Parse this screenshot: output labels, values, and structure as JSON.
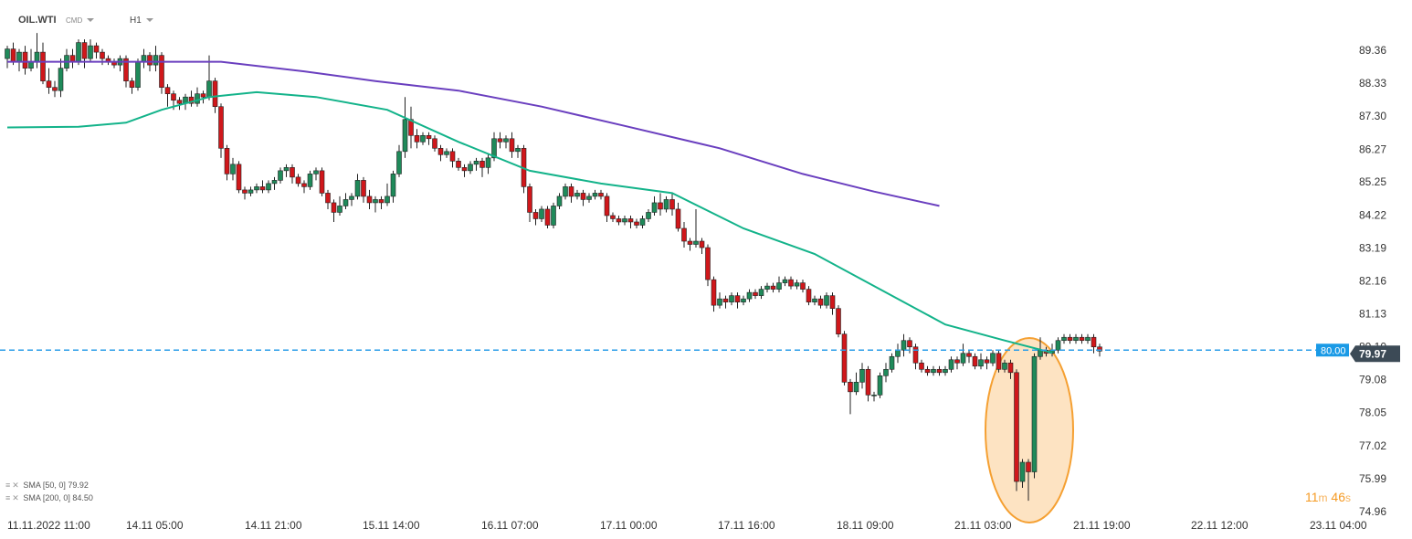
{
  "header": {
    "symbol": "OIL.WTI",
    "type": "CMD",
    "timeframe": "H1"
  },
  "legend": [
    {
      "label": "SMA  [50,  0]",
      "value": "79.92",
      "color": "#13b38a"
    },
    {
      "label": "SMA  [200,  0]",
      "value": "84.50",
      "color": "#6a3fbf"
    }
  ],
  "timer": {
    "minutes": "11",
    "m_unit": "m",
    "seconds": "46",
    "s_unit": "s"
  },
  "price_tags": {
    "line_label": "80.00",
    "last_label": "79.97"
  },
  "colors": {
    "up": "#1f8a5a",
    "down": "#d0171b",
    "sma50": "#13b38a",
    "sma200": "#6a3fbf",
    "price_line": "#2a9de8",
    "last_tag": "#3c4a56",
    "highlight_fill": "#fde3c2",
    "highlight_stroke": "#f5a032"
  },
  "chart_data": {
    "type": "candlestick",
    "y_ticks": [
      "89.36",
      "88.33",
      "87.30",
      "86.27",
      "85.25",
      "84.22",
      "83.19",
      "82.16",
      "81.13",
      "80.10",
      "79.08",
      "78.05",
      "77.02",
      "75.99",
      "74.96"
    ],
    "x_ticks": [
      "11.11.2022  11:00",
      "14.11  05:00",
      "14.11  21:00",
      "15.11  14:00",
      "16.11  07:00",
      "17.11  00:00",
      "17.11  16:00",
      "18.11  09:00",
      "21.11  03:00",
      "21.11  19:00",
      "22.11  12:00",
      "23.11  04:00"
    ],
    "ylim": [
      74.96,
      89.36
    ],
    "x_range_bars": [
      0,
      194
    ],
    "candles": [
      [
        89.1,
        89.4,
        88.8,
        89.5
      ],
      [
        89.4,
        89.0,
        88.9,
        89.6
      ],
      [
        89.0,
        89.3,
        88.7,
        89.4
      ],
      [
        89.3,
        88.8,
        88.6,
        89.5
      ],
      [
        88.8,
        89.0,
        88.7,
        89.4
      ],
      [
        89.0,
        89.3,
        88.8,
        89.9
      ],
      [
        89.3,
        88.4,
        88.3,
        89.6
      ],
      [
        88.4,
        88.2,
        88.0,
        88.8
      ],
      [
        88.2,
        88.1,
        87.9,
        88.4
      ],
      [
        88.1,
        88.8,
        87.9,
        89.1
      ],
      [
        88.8,
        89.2,
        88.7,
        89.4
      ],
      [
        89.2,
        89.0,
        88.8,
        89.4
      ],
      [
        89.0,
        89.6,
        88.9,
        89.7
      ],
      [
        89.6,
        89.1,
        88.8,
        89.7
      ],
      [
        89.1,
        89.5,
        89.0,
        89.7
      ],
      [
        89.5,
        89.3,
        89.1,
        89.6
      ],
      [
        89.3,
        89.1,
        88.9,
        89.4
      ],
      [
        89.1,
        89.0,
        88.9,
        89.2
      ],
      [
        89.0,
        88.9,
        88.8,
        89.1
      ],
      [
        88.9,
        89.1,
        88.7,
        89.2
      ],
      [
        89.1,
        88.4,
        88.2,
        89.2
      ],
      [
        88.4,
        88.2,
        88.0,
        88.5
      ],
      [
        88.2,
        89.0,
        88.1,
        89.1
      ],
      [
        89.0,
        89.2,
        88.8,
        89.4
      ],
      [
        89.2,
        88.9,
        88.7,
        89.3
      ],
      [
        88.9,
        89.2,
        88.7,
        89.5
      ],
      [
        89.2,
        88.2,
        88.0,
        89.3
      ],
      [
        88.2,
        88.0,
        87.6,
        88.3
      ],
      [
        88.0,
        87.8,
        87.5,
        88.1
      ],
      [
        87.8,
        87.7,
        87.5,
        87.9
      ],
      [
        87.7,
        87.9,
        87.5,
        88.0
      ],
      [
        87.9,
        87.7,
        87.6,
        88.1
      ],
      [
        87.7,
        88.0,
        87.6,
        88.2
      ],
      [
        88.0,
        87.9,
        87.7,
        88.1
      ],
      [
        87.9,
        88.4,
        87.8,
        89.2
      ],
      [
        88.4,
        87.6,
        87.4,
        88.5
      ],
      [
        87.6,
        86.3,
        86.0,
        87.7
      ],
      [
        86.3,
        85.5,
        85.3,
        86.4
      ],
      [
        85.5,
        85.8,
        85.3,
        86.0
      ],
      [
        85.8,
        85.0,
        84.9,
        85.9
      ],
      [
        85.0,
        84.9,
        84.7,
        85.1
      ],
      [
        84.9,
        85.0,
        84.8,
        85.1
      ],
      [
        85.0,
        85.1,
        84.9,
        85.2
      ],
      [
        85.1,
        85.0,
        84.9,
        85.3
      ],
      [
        85.0,
        85.2,
        84.9,
        85.3
      ],
      [
        85.2,
        85.3,
        85.0,
        85.4
      ],
      [
        85.3,
        85.6,
        85.2,
        85.7
      ],
      [
        85.6,
        85.7,
        85.4,
        85.8
      ],
      [
        85.7,
        85.4,
        85.2,
        85.8
      ],
      [
        85.4,
        85.2,
        85.1,
        85.5
      ],
      [
        85.2,
        85.1,
        84.9,
        85.3
      ],
      [
        85.1,
        85.5,
        85.0,
        85.6
      ],
      [
        85.5,
        85.6,
        85.3,
        85.7
      ],
      [
        85.6,
        84.9,
        84.8,
        85.7
      ],
      [
        84.9,
        84.6,
        84.4,
        85.0
      ],
      [
        84.6,
        84.3,
        84.0,
        84.7
      ],
      [
        84.3,
        84.5,
        84.2,
        84.8
      ],
      [
        84.5,
        84.7,
        84.4,
        84.9
      ],
      [
        84.7,
        84.8,
        84.5,
        84.9
      ],
      [
        84.8,
        85.3,
        84.7,
        85.5
      ],
      [
        85.3,
        84.8,
        84.6,
        85.4
      ],
      [
        84.8,
        84.6,
        84.4,
        85.0
      ],
      [
        84.6,
        84.7,
        84.3,
        84.8
      ],
      [
        84.7,
        84.6,
        84.4,
        84.8
      ],
      [
        84.6,
        84.8,
        84.5,
        85.2
      ],
      [
        84.8,
        85.5,
        84.6,
        85.6
      ],
      [
        85.5,
        86.2,
        85.4,
        86.4
      ],
      [
        86.2,
        87.2,
        86.0,
        87.9
      ],
      [
        87.2,
        86.7,
        86.3,
        87.6
      ],
      [
        86.7,
        86.5,
        86.3,
        86.9
      ],
      [
        86.5,
        86.7,
        86.4,
        86.8
      ],
      [
        86.7,
        86.6,
        86.4,
        86.8
      ],
      [
        86.6,
        86.3,
        86.2,
        86.7
      ],
      [
        86.3,
        86.1,
        85.9,
        86.4
      ],
      [
        86.1,
        86.2,
        86.0,
        86.3
      ],
      [
        86.2,
        85.9,
        85.7,
        86.3
      ],
      [
        85.9,
        85.7,
        85.6,
        86.0
      ],
      [
        85.7,
        85.6,
        85.4,
        85.8
      ],
      [
        85.6,
        85.8,
        85.5,
        85.9
      ],
      [
        85.8,
        85.9,
        85.6,
        86.0
      ],
      [
        85.9,
        85.7,
        85.4,
        86.0
      ],
      [
        85.7,
        86.0,
        85.5,
        86.1
      ],
      [
        86.0,
        86.6,
        85.9,
        86.8
      ],
      [
        86.6,
        86.5,
        86.3,
        86.8
      ],
      [
        86.5,
        86.6,
        86.3,
        86.7
      ],
      [
        86.6,
        86.2,
        86.0,
        86.8
      ],
      [
        86.2,
        86.3,
        86.0,
        86.4
      ],
      [
        86.3,
        85.1,
        84.9,
        86.4
      ],
      [
        85.1,
        84.3,
        84.0,
        85.2
      ],
      [
        84.3,
        84.1,
        83.9,
        84.4
      ],
      [
        84.1,
        84.4,
        84.0,
        84.5
      ],
      [
        84.4,
        83.9,
        83.8,
        84.5
      ],
      [
        83.9,
        84.5,
        83.8,
        84.6
      ],
      [
        84.5,
        84.8,
        84.4,
        84.9
      ],
      [
        84.8,
        85.1,
        84.7,
        85.2
      ],
      [
        85.1,
        84.8,
        84.6,
        85.2
      ],
      [
        84.8,
        84.9,
        84.7,
        85.0
      ],
      [
        84.9,
        84.7,
        84.5,
        85.0
      ],
      [
        84.7,
        84.8,
        84.6,
        84.9
      ],
      [
        84.8,
        84.9,
        84.7,
        85.0
      ],
      [
        84.9,
        84.8,
        84.7,
        85.0
      ],
      [
        84.8,
        84.2,
        84.0,
        84.9
      ],
      [
        84.2,
        84.1,
        84.0,
        84.3
      ],
      [
        84.1,
        84.0,
        83.9,
        84.2
      ],
      [
        84.0,
        84.1,
        83.9,
        84.2
      ],
      [
        84.1,
        84.0,
        83.8,
        84.2
      ],
      [
        84.0,
        83.9,
        83.8,
        84.1
      ],
      [
        83.9,
        84.1,
        83.8,
        84.2
      ],
      [
        84.1,
        84.3,
        84.0,
        84.4
      ],
      [
        84.3,
        84.6,
        84.2,
        84.8
      ],
      [
        84.6,
        84.4,
        84.2,
        84.9
      ],
      [
        84.4,
        84.7,
        84.3,
        84.8
      ],
      [
        84.7,
        84.4,
        84.2,
        84.9
      ],
      [
        84.4,
        83.8,
        83.7,
        84.6
      ],
      [
        83.8,
        83.4,
        83.2,
        84.0
      ],
      [
        83.4,
        83.3,
        83.1,
        83.5
      ],
      [
        83.3,
        83.4,
        83.2,
        84.4
      ],
      [
        83.4,
        83.2,
        83.0,
        83.5
      ],
      [
        83.2,
        82.2,
        82.0,
        83.3
      ],
      [
        82.2,
        81.4,
        81.2,
        82.3
      ],
      [
        81.4,
        81.6,
        81.3,
        81.8
      ],
      [
        81.6,
        81.5,
        81.3,
        81.7
      ],
      [
        81.5,
        81.7,
        81.4,
        81.8
      ],
      [
        81.7,
        81.5,
        81.3,
        81.8
      ],
      [
        81.5,
        81.6,
        81.4,
        81.7
      ],
      [
        81.6,
        81.8,
        81.5,
        81.9
      ],
      [
        81.8,
        81.7,
        81.6,
        81.9
      ],
      [
        81.7,
        81.9,
        81.6,
        82.0
      ],
      [
        81.9,
        82.0,
        81.8,
        82.1
      ],
      [
        82.0,
        81.9,
        81.8,
        82.1
      ],
      [
        81.9,
        82.1,
        81.8,
        82.3
      ],
      [
        82.1,
        82.2,
        82.0,
        82.3
      ],
      [
        82.2,
        82.0,
        81.9,
        82.3
      ],
      [
        82.0,
        82.1,
        81.9,
        82.2
      ],
      [
        82.1,
        81.9,
        81.8,
        82.2
      ],
      [
        81.9,
        81.5,
        81.4,
        82.0
      ],
      [
        81.5,
        81.6,
        81.4,
        81.7
      ],
      [
        81.6,
        81.4,
        81.3,
        81.7
      ],
      [
        81.4,
        81.7,
        81.3,
        81.8
      ],
      [
        81.7,
        81.3,
        81.1,
        81.8
      ],
      [
        81.3,
        80.5,
        80.4,
        81.4
      ],
      [
        80.5,
        79.0,
        78.9,
        80.6
      ],
      [
        79.0,
        78.7,
        78.0,
        79.1
      ],
      [
        78.7,
        79.0,
        78.6,
        79.3
      ],
      [
        79.0,
        79.4,
        78.8,
        79.6
      ],
      [
        79.4,
        78.6,
        78.4,
        79.5
      ],
      [
        78.6,
        78.6,
        78.4,
        78.7
      ],
      [
        78.6,
        79.2,
        78.5,
        79.3
      ],
      [
        79.2,
        79.4,
        79.0,
        79.6
      ],
      [
        79.4,
        79.8,
        79.3,
        79.9
      ],
      [
        79.8,
        80.0,
        79.6,
        80.2
      ],
      [
        80.0,
        80.3,
        79.8,
        80.5
      ],
      [
        80.3,
        80.1,
        79.9,
        80.4
      ],
      [
        80.1,
        79.6,
        79.4,
        80.2
      ],
      [
        79.6,
        79.4,
        79.3,
        79.7
      ],
      [
        79.4,
        79.3,
        79.2,
        79.5
      ],
      [
        79.3,
        79.4,
        79.2,
        79.5
      ],
      [
        79.4,
        79.3,
        79.2,
        79.5
      ],
      [
        79.3,
        79.4,
        79.2,
        79.5
      ],
      [
        79.4,
        79.7,
        79.3,
        79.8
      ],
      [
        79.7,
        79.6,
        79.4,
        79.8
      ],
      [
        79.6,
        79.9,
        79.5,
        80.2
      ],
      [
        79.9,
        79.8,
        79.6,
        80.0
      ],
      [
        79.8,
        79.5,
        79.4,
        79.9
      ],
      [
        79.5,
        79.7,
        79.4,
        79.9
      ],
      [
        79.7,
        79.6,
        79.4,
        79.8
      ],
      [
        79.6,
        79.9,
        79.5,
        80.0
      ],
      [
        79.9,
        79.4,
        79.3,
        80.0
      ],
      [
        79.4,
        79.6,
        79.3,
        79.7
      ],
      [
        79.6,
        79.3,
        79.1,
        79.7
      ],
      [
        79.3,
        75.9,
        75.6,
        79.4
      ],
      [
        75.9,
        76.5,
        75.7,
        76.6
      ],
      [
        76.5,
        76.2,
        75.3,
        76.6
      ],
      [
        76.2,
        79.8,
        76.0,
        79.9
      ],
      [
        79.8,
        80.0,
        79.7,
        80.4
      ],
      [
        80.0,
        79.9,
        79.8,
        80.1
      ],
      [
        79.9,
        80.0,
        79.8,
        80.2
      ],
      [
        80.0,
        80.3,
        79.9,
        80.4
      ],
      [
        80.3,
        80.4,
        80.2,
        80.5
      ],
      [
        80.4,
        80.3,
        80.2,
        80.5
      ],
      [
        80.3,
        80.4,
        80.2,
        80.5
      ],
      [
        80.4,
        80.3,
        80.2,
        80.5
      ],
      [
        80.3,
        80.4,
        80.2,
        80.5
      ],
      [
        80.4,
        80.1,
        79.9,
        80.5
      ],
      [
        80.1,
        79.97,
        79.8,
        80.2
      ]
    ],
    "sma50": [
      [
        0,
        86.95
      ],
      [
        12,
        86.97
      ],
      [
        20,
        87.1
      ],
      [
        26,
        87.5
      ],
      [
        34,
        87.9
      ],
      [
        42,
        88.05
      ],
      [
        52,
        87.9
      ],
      [
        64,
        87.5
      ],
      [
        76,
        86.5
      ],
      [
        88,
        85.6
      ],
      [
        100,
        85.2
      ],
      [
        112,
        84.9
      ],
      [
        124,
        83.8
      ],
      [
        136,
        83.0
      ],
      [
        148,
        81.8
      ],
      [
        158,
        80.8
      ],
      [
        168,
        80.3
      ],
      [
        176,
        79.92
      ]
    ],
    "sma200": [
      [
        0,
        89.0
      ],
      [
        20,
        89.0
      ],
      [
        36,
        89.0
      ],
      [
        50,
        88.7
      ],
      [
        62,
        88.4
      ],
      [
        76,
        88.1
      ],
      [
        90,
        87.6
      ],
      [
        104,
        87.0
      ],
      [
        120,
        86.3
      ],
      [
        134,
        85.5
      ],
      [
        146,
        84.95
      ],
      [
        157,
        84.5
      ]
    ],
    "price_line": 80.0,
    "last_price": 79.97,
    "highlight_bars": [
      168,
      176
    ]
  }
}
